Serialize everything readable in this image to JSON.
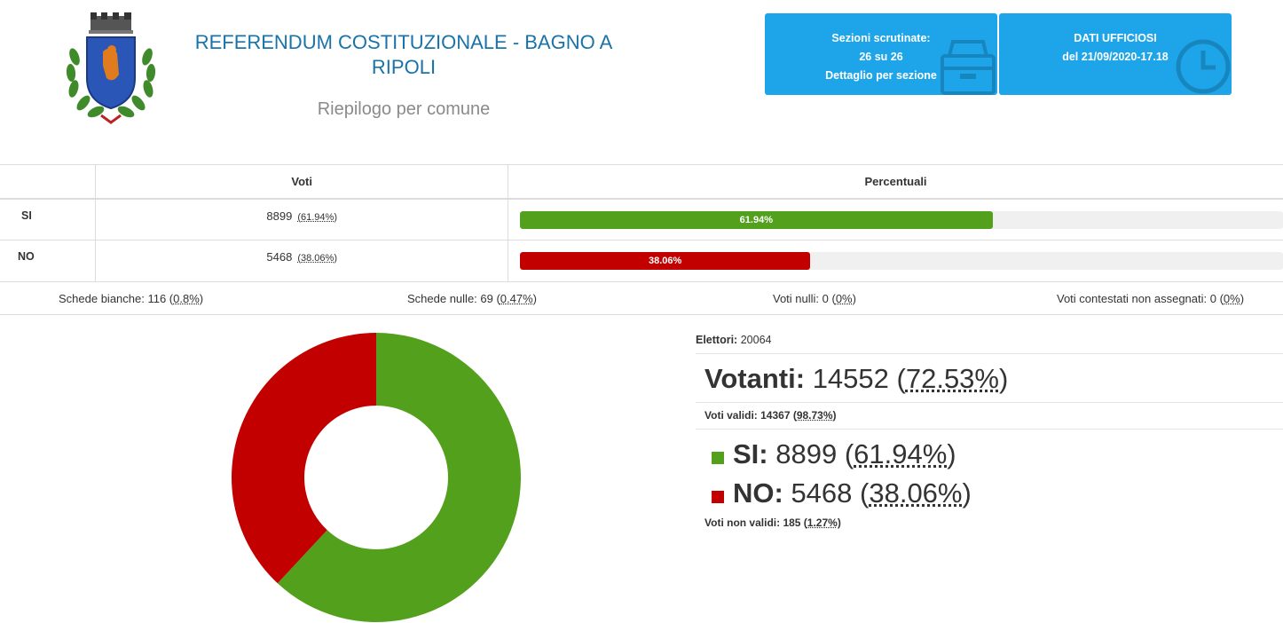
{
  "header": {
    "title": "REFERENDUM COSTITUZIONALE  - BAGNO A RIPOLI",
    "subtitle": "Riepilogo per comune",
    "crest_icon": "municipal-crest-icon"
  },
  "box_sezioni": {
    "line1": "Sezioni scrutinate:",
    "line2": "26 su 26",
    "link": "Dettaglio per sezione",
    "icon": "archive-box-icon"
  },
  "box_dati": {
    "line1": "DATI UFFICIOSI",
    "line2": "del 21/09/2020-17.18",
    "icon": "clock-icon"
  },
  "table": {
    "col_votes": "Voti",
    "col_pct": "Percentuali",
    "rows": [
      {
        "label": "SI",
        "votes": "8899",
        "pct": "(61.94%)",
        "bar_label": "61.94%",
        "value": 61.94,
        "color": "#52a01b"
      },
      {
        "label": "NO",
        "votes": "5468",
        "pct": "(38.06%)",
        "bar_label": "38.06%",
        "value": 38.06,
        "color": "#c20000"
      }
    ]
  },
  "stats": {
    "bianche_label": "Schede bianche: 116 (",
    "bianche_pct": "0.8%",
    "bianche_end": ")",
    "nulle_label": "Schede nulle: 69 (",
    "nulle_pct": "0.47%",
    "nulle_end": ")",
    "vnulli_label": "Voti nulli: 0 (",
    "vnulli_pct": "0%",
    "vnulli_end": ")",
    "contestati_label": "Voti contestati non assegnati: 0 (",
    "contestati_pct": "0%",
    "contestati_end": ")"
  },
  "summary": {
    "elettori_label": "Elettori:",
    "elettori_value": " 20064",
    "votanti_label": "Votanti:",
    "votanti_value": " 14552 (",
    "votanti_pct": "72.53%",
    "votanti_end": ")",
    "validi_label": "Voti validi: 14367 (",
    "validi_pct": "98.73%",
    "validi_end": ")",
    "si_label": "SI:",
    "si_value": " 8899 (",
    "si_pct": "61.94%",
    "si_end": ")",
    "no_label": "NO:",
    "no_value": " 5468 (",
    "no_pct": "38.06%",
    "no_end": ")",
    "nonvalidi_label": "Voti non validi: 185 (",
    "nonvalidi_pct": "1.27%",
    "nonvalidi_end": ")"
  },
  "chart_data": {
    "type": "pie",
    "categories": [
      "SI",
      "NO"
    ],
    "values": [
      8899,
      5468
    ],
    "colors": [
      "#52a01b",
      "#c20000"
    ],
    "donut": true
  }
}
